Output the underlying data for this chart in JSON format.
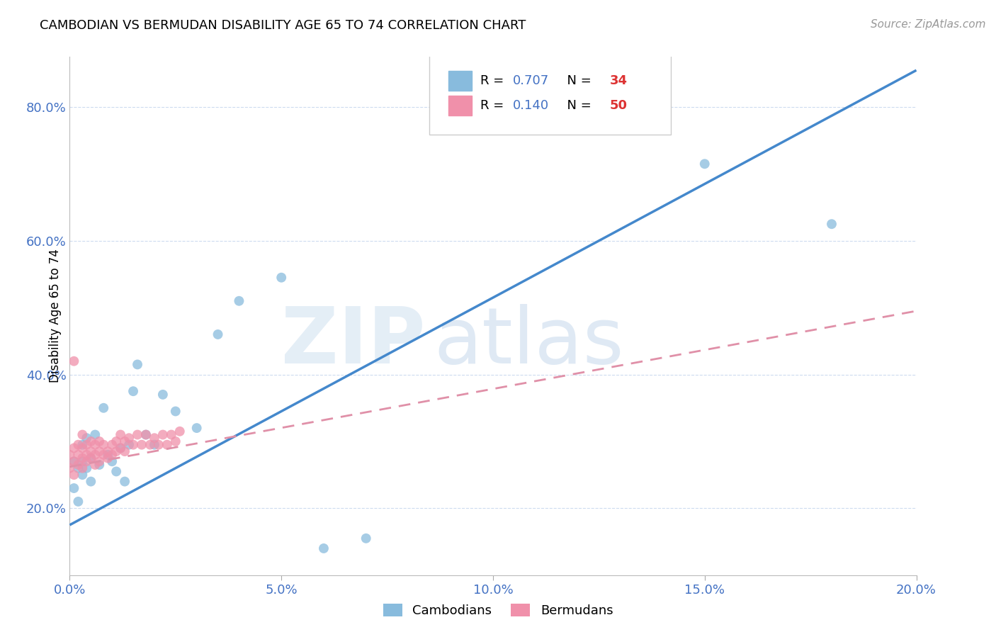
{
  "title": "CAMBODIAN VS BERMUDAN DISABILITY AGE 65 TO 74 CORRELATION CHART",
  "source": "Source: ZipAtlas.com",
  "ylabel": "Disability Age 65 to 74",
  "legend_label1": "Cambodians",
  "legend_label2": "Bermudans",
  "R_cambodian": 0.707,
  "N_cambodian": 34,
  "R_bermudan": 0.14,
  "N_bermudan": 50,
  "xlim": [
    0.0,
    0.2
  ],
  "ylim": [
    0.1,
    0.875
  ],
  "xtick_labels": [
    "0.0%",
    "5.0%",
    "10.0%",
    "15.0%",
    "20.0%"
  ],
  "xtick_values": [
    0.0,
    0.05,
    0.1,
    0.15,
    0.2
  ],
  "ytick_labels": [
    "20.0%",
    "40.0%",
    "60.0%",
    "80.0%"
  ],
  "ytick_values": [
    0.2,
    0.4,
    0.6,
    0.8
  ],
  "color_cambodian": "#88bbdd",
  "color_bermudan": "#f090aa",
  "color_line_cambodian": "#4488cc",
  "color_line_bermudan": "#e090a8",
  "color_axis_labels": "#4472c4",
  "background_color": "#ffffff",
  "watermark_zip": "ZIP",
  "watermark_atlas": "atlas",
  "cam_line_x0": 0.0,
  "cam_line_y0": 0.175,
  "cam_line_x1": 0.2,
  "cam_line_y1": 0.855,
  "berm_line_x0": 0.0,
  "berm_line_y0": 0.262,
  "berm_line_x1": 0.2,
  "berm_line_y1": 0.495,
  "cam_points_x": [
    0.001,
    0.001,
    0.002,
    0.002,
    0.003,
    0.003,
    0.003,
    0.004,
    0.004,
    0.005,
    0.005,
    0.006,
    0.007,
    0.008,
    0.009,
    0.01,
    0.011,
    0.012,
    0.013,
    0.014,
    0.015,
    0.016,
    0.018,
    0.02,
    0.022,
    0.025,
    0.03,
    0.035,
    0.04,
    0.05,
    0.06,
    0.07,
    0.15,
    0.18
  ],
  "cam_points_y": [
    0.27,
    0.23,
    0.26,
    0.21,
    0.295,
    0.25,
    0.27,
    0.26,
    0.305,
    0.275,
    0.24,
    0.31,
    0.265,
    0.35,
    0.28,
    0.27,
    0.255,
    0.29,
    0.24,
    0.295,
    0.375,
    0.415,
    0.31,
    0.295,
    0.37,
    0.345,
    0.32,
    0.46,
    0.51,
    0.545,
    0.14,
    0.155,
    0.715,
    0.625
  ],
  "berm_points_x": [
    0.0,
    0.0,
    0.001,
    0.001,
    0.001,
    0.001,
    0.002,
    0.002,
    0.002,
    0.003,
    0.003,
    0.003,
    0.003,
    0.004,
    0.004,
    0.004,
    0.005,
    0.005,
    0.005,
    0.006,
    0.006,
    0.006,
    0.007,
    0.007,
    0.007,
    0.008,
    0.008,
    0.009,
    0.009,
    0.01,
    0.01,
    0.011,
    0.011,
    0.012,
    0.012,
    0.013,
    0.013,
    0.014,
    0.015,
    0.016,
    0.017,
    0.018,
    0.019,
    0.02,
    0.021,
    0.022,
    0.023,
    0.024,
    0.025,
    0.026
  ],
  "berm_points_y": [
    0.28,
    0.26,
    0.29,
    0.27,
    0.25,
    0.42,
    0.28,
    0.295,
    0.265,
    0.275,
    0.29,
    0.26,
    0.31,
    0.28,
    0.295,
    0.27,
    0.275,
    0.285,
    0.3,
    0.28,
    0.295,
    0.265,
    0.285,
    0.3,
    0.27,
    0.28,
    0.295,
    0.275,
    0.285,
    0.28,
    0.295,
    0.285,
    0.3,
    0.29,
    0.31,
    0.285,
    0.3,
    0.305,
    0.295,
    0.31,
    0.295,
    0.31,
    0.295,
    0.305,
    0.295,
    0.31,
    0.295,
    0.31,
    0.3,
    0.315
  ]
}
